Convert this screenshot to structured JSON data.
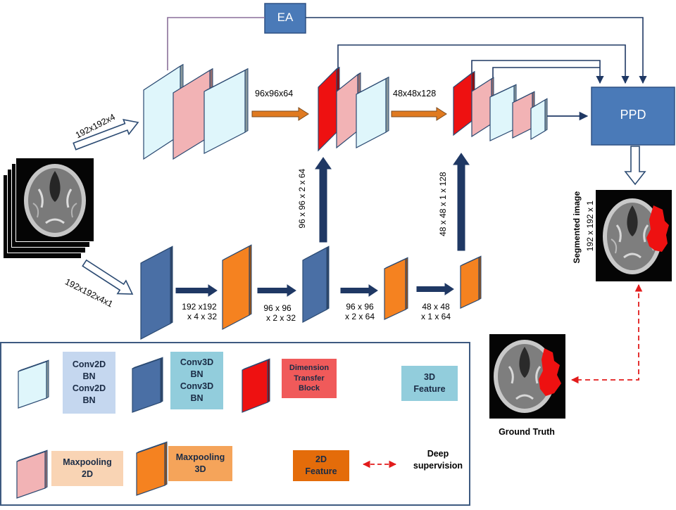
{
  "blocks": {
    "ea": "EA",
    "ppd": "PPD"
  },
  "input_labels": {
    "top": "192x192x4",
    "bottom": "192x192x4x1"
  },
  "top_branch_labels": {
    "after_stage1": "96x96x64",
    "after_stage2": "48x48x128"
  },
  "bottom_branch_labels": [
    {
      "line1": "192 x192",
      "line2": "x 4 x 32"
    },
    {
      "line1": "96 x 96",
      "line2": "x 2 x 32"
    },
    {
      "line1": "96 x 96",
      "line2": "x 2 x 64"
    },
    {
      "line1": "48 x 48",
      "line2": "x 1 x 64"
    }
  ],
  "transfer_labels": {
    "first": "96 x 96 x 2 x 64",
    "second": "48 x 48 x 1  x 128"
  },
  "output": {
    "segmented_title": "Segmented image",
    "segmented_size": "192 x 192 x 1",
    "ground_truth": "Ground Truth"
  },
  "legend": {
    "conv2d": "Conv2D\nBN\nConv2D\nBN",
    "conv3d": "Conv3D\nBN\nConv3D\nBN",
    "dim_transfer": "Dimension\nTransfer\nBlock",
    "feature3d": "3D\nFeature",
    "maxpool2d": "Maxpooling\n2D",
    "maxpool3d": "Maxpooling\n3D",
    "feature2d": "2D\nFeature",
    "deep_supervision": "Deep\nsupervision"
  },
  "colors": {
    "block_blue": "#4a7ab8",
    "conv2d_face": "#dff6fb",
    "maxpool2d_face": "#f2b3b5",
    "conv3d_face": "#4a6fa5",
    "maxpool3d_face": "#f58220",
    "dim_transfer_face": "#ee1111",
    "dark_arrow": "#1f3864",
    "orange_arrow": "#e07a20",
    "supervision_red": "#e21b1b",
    "legend_border": "#3d5a80"
  }
}
